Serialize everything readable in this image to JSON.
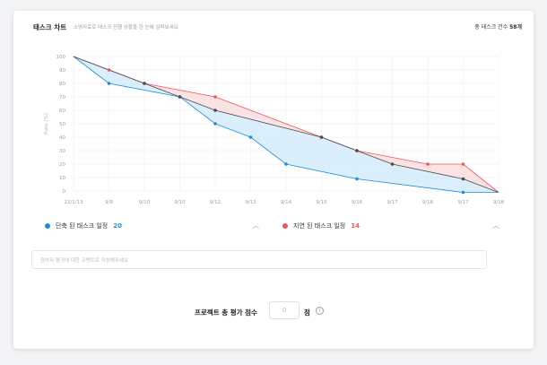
{
  "header": {
    "title": "태스크 차트",
    "subtitle": "소명자료로 태스크 진행 상황을 한 눈에 살펴보세요",
    "total_label": "총 태스크 건수",
    "total_value": "58개"
  },
  "chart_data": {
    "type": "line",
    "title": "태스크 차트",
    "ylabel": "Rate (%)",
    "xlabel": "",
    "ylim": [
      0,
      100
    ],
    "yticks": [
      0,
      10,
      20,
      30,
      40,
      50,
      60,
      70,
      80,
      90,
      100
    ],
    "categories": [
      "22/1/13",
      "9/9",
      "9/10",
      "9/10",
      "9/12",
      "9/13",
      "9/14",
      "9/15",
      "9/16",
      "9/17",
      "9/16",
      "9/17",
      "9/18"
    ],
    "grid": true,
    "series": [
      {
        "name": "단축 된 태스크 일정",
        "color": "#1a8fe0",
        "values": [
          100,
          80,
          null,
          70,
          50,
          40,
          20,
          null,
          9,
          null,
          null,
          -1,
          -1
        ]
      },
      {
        "name": "지연 된 태스크 일정",
        "color": "#f0555a",
        "values": [
          100,
          90,
          80,
          null,
          70,
          null,
          null,
          40,
          30,
          null,
          20,
          20,
          -1
        ]
      },
      {
        "name": "",
        "color": "#4a4a4a",
        "values": [
          100,
          null,
          80,
          70,
          60,
          null,
          null,
          40,
          30,
          20,
          null,
          9,
          -1
        ]
      }
    ]
  },
  "legend": {
    "shortened_label": "단축 된 태스크 일정",
    "shortened_count": "20",
    "delayed_label": "지연 된 태스크 일정",
    "delayed_count": "14",
    "collapse_icon": "chevron-up-icon"
  },
  "comment": {
    "placeholder": "참여자 평가에 대한 코멘트로 작성해주세요"
  },
  "score": {
    "label": "프로젝트 총 평가 점수",
    "value": "0",
    "unit": "점",
    "info_icon": "info-icon"
  },
  "colors": {
    "shortened": "#1a8fe0",
    "delayed": "#f0555a",
    "baseline": "#4a4a4a"
  }
}
